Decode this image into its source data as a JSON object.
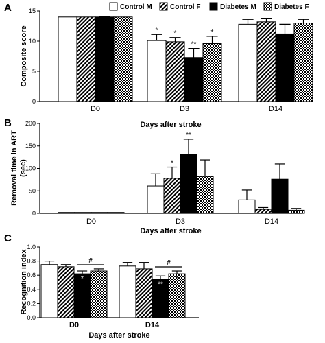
{
  "legend": {
    "entries": [
      {
        "label": "Control M",
        "pattern": "open"
      },
      {
        "label": "Control F",
        "pattern": "hatch"
      },
      {
        "label": "Diabetes M",
        "pattern": "solid"
      },
      {
        "label": "Diabetes F",
        "pattern": "checker"
      }
    ]
  },
  "chart_data": [
    {
      "panel": "A",
      "type": "bar",
      "ylabel": "Composite score",
      "xlabel": "Days after stroke",
      "categories": [
        "D0",
        "D3",
        "D14"
      ],
      "ylim": [
        0,
        15
      ],
      "yticks": [
        0,
        5,
        10,
        15
      ],
      "series": [
        {
          "name": "Control M",
          "values": [
            14,
            10.1,
            12.8
          ],
          "errors": [
            0,
            1.0,
            0.8
          ]
        },
        {
          "name": "Control F",
          "values": [
            14,
            9.9,
            13.2
          ],
          "errors": [
            0,
            0.7,
            0.6
          ]
        },
        {
          "name": "Diabetes M",
          "values": [
            14,
            7.3,
            11.2
          ],
          "errors": [
            0.1,
            1.5,
            1.6
          ]
        },
        {
          "name": "Diabetes F",
          "values": [
            14,
            9.6,
            13.0
          ],
          "errors": [
            0,
            1.2,
            0.6
          ]
        }
      ],
      "annotations": [
        {
          "category": 1,
          "series": 0,
          "text": "*"
        },
        {
          "category": 1,
          "series": 1,
          "text": "*"
        },
        {
          "category": 1,
          "series": 2,
          "text": "**"
        },
        {
          "category": 1,
          "series": 3,
          "text": "*"
        }
      ]
    },
    {
      "panel": "B",
      "type": "bar",
      "ylabel": "Removal time in ART (sec)",
      "xlabel": "Days after stroke",
      "categories": [
        "D0",
        "D3",
        "D14"
      ],
      "ylim": [
        0,
        200
      ],
      "yticks": [
        0,
        50,
        100,
        150,
        200
      ],
      "series": [
        {
          "name": "Control M",
          "values": [
            2,
            61,
            30
          ],
          "errors": [
            0,
            27,
            22
          ]
        },
        {
          "name": "Control F",
          "values": [
            2,
            78,
            9
          ],
          "errors": [
            0,
            25,
            4
          ]
        },
        {
          "name": "Diabetes M",
          "values": [
            2,
            132,
            76
          ],
          "errors": [
            0,
            33,
            34
          ]
        },
        {
          "name": "Diabetes F",
          "values": [
            2,
            82,
            7
          ],
          "errors": [
            0,
            37,
            4
          ]
        }
      ],
      "annotations": [
        {
          "category": 1,
          "series": 1,
          "text": "*"
        },
        {
          "category": 1,
          "series": 2,
          "text": "**"
        }
      ]
    },
    {
      "panel": "C",
      "type": "bar",
      "ylabel": "Recognition index",
      "xlabel": "Days after stroke",
      "categories": [
        "D0",
        "D14"
      ],
      "ylim": [
        0,
        1.0
      ],
      "yticks": [
        0,
        0.2,
        0.4,
        0.6,
        0.8,
        1.0
      ],
      "series": [
        {
          "name": "Control M",
          "values": [
            0.75,
            0.73
          ],
          "errors": [
            0.05,
            0.05
          ]
        },
        {
          "name": "Control F",
          "values": [
            0.72,
            0.69
          ],
          "errors": [
            0.03,
            0.09
          ]
        },
        {
          "name": "Diabetes M",
          "values": [
            0.62,
            0.54
          ],
          "errors": [
            0.04,
            0.05
          ]
        },
        {
          "name": "Diabetes F",
          "values": [
            0.66,
            0.62
          ],
          "errors": [
            0.03,
            0.04
          ]
        }
      ],
      "annotations": [
        {
          "category": 0,
          "series": 2,
          "text": "*"
        },
        {
          "category": 0,
          "series": 3,
          "text": "*"
        },
        {
          "category": 1,
          "series": 2,
          "text": "**"
        },
        {
          "category": 1,
          "series": 3,
          "text": "*"
        }
      ],
      "brackets": [
        {
          "category": 0,
          "from": 2,
          "to": 3,
          "text": "#"
        },
        {
          "category": 1,
          "from": 2,
          "to": 3,
          "text": "#"
        }
      ]
    }
  ]
}
